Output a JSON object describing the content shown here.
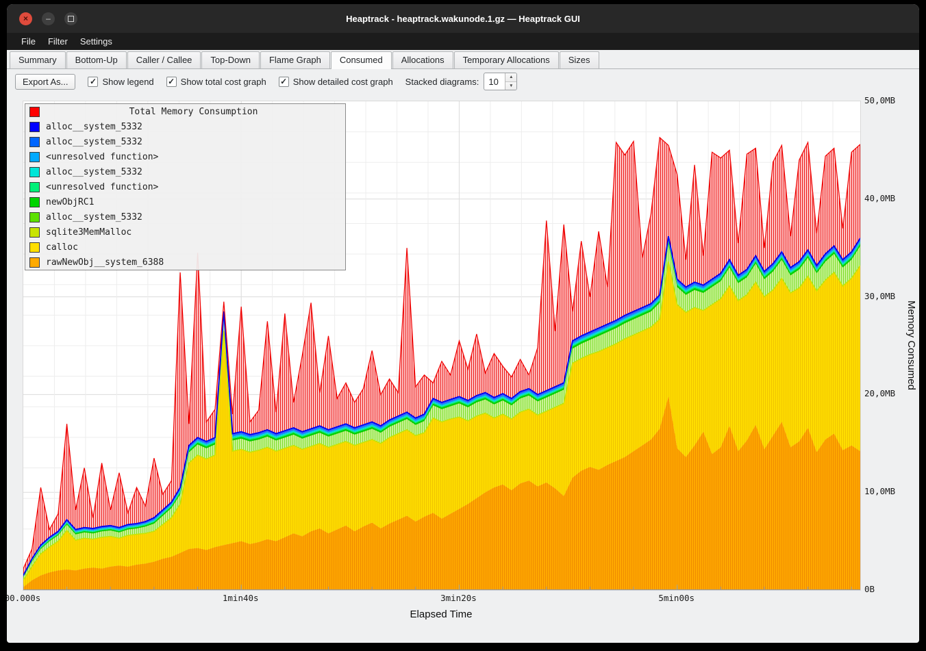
{
  "window": {
    "title": "Heaptrack - heaptrack.wakunode.1.gz — Heaptrack GUI",
    "controls": {
      "close": "×",
      "minimize": "–"
    }
  },
  "menubar": {
    "items": [
      {
        "label": "File"
      },
      {
        "label": "Filter"
      },
      {
        "label": "Settings"
      }
    ]
  },
  "tabs": {
    "active_index": 5,
    "items": [
      {
        "label": "Summary"
      },
      {
        "label": "Bottom-Up"
      },
      {
        "label": "Caller / Callee"
      },
      {
        "label": "Top-Down"
      },
      {
        "label": "Flame Graph"
      },
      {
        "label": "Consumed"
      },
      {
        "label": "Allocations"
      },
      {
        "label": "Temporary Allocations"
      },
      {
        "label": "Sizes"
      }
    ]
  },
  "toolbar": {
    "export_button": "Export As...",
    "check_glyph": "✓",
    "spin_up_glyph": "▲",
    "spin_down_glyph": "▼",
    "checkboxes": [
      {
        "label": "Show legend",
        "checked": true
      },
      {
        "label": "Show total cost graph",
        "checked": true
      },
      {
        "label": "Show detailed cost graph",
        "checked": true
      }
    ],
    "stacked_label": "Stacked diagrams:",
    "stacked_value": "10"
  },
  "chart_data": {
    "type": "area",
    "title": "Total Memory Consumption",
    "xlabel": "Elapsed Time",
    "ylabel": "Memory Consumed",
    "ylim_mb": [
      0,
      50
    ],
    "x": {
      "start_s": 0,
      "step_s": 4,
      "count": 97
    },
    "x_ticks": [
      {
        "t_s": 0,
        "label": "00.000s"
      },
      {
        "t_s": 100,
        "label": "1min40s"
      },
      {
        "t_s": 200,
        "label": "3min20s"
      },
      {
        "t_s": 300,
        "label": "5min00s"
      }
    ],
    "y_ticks": [
      {
        "mb": 0,
        "label": "0B"
      },
      {
        "mb": 10,
        "label": "10,0MB"
      },
      {
        "mb": 20,
        "label": "20,0MB"
      },
      {
        "mb": 30,
        "label": "30,0MB"
      },
      {
        "mb": 40,
        "label": "40,0MB"
      },
      {
        "mb": 50,
        "label": "50,0MB"
      }
    ],
    "legend": {
      "title": {
        "label": "Total Memory Consumption",
        "color": "#ff0000"
      },
      "items": [
        {
          "label": "alloc__system_5332",
          "color": "#0000ff"
        },
        {
          "label": "alloc__system_5332",
          "color": "#0066ff"
        },
        {
          "label": "<unresolved function>",
          "color": "#00aaff"
        },
        {
          "label": "alloc__system_5332",
          "color": "#00e6d8"
        },
        {
          "label": "<unresolved function>",
          "color": "#00f078"
        },
        {
          "label": "newObjRC1",
          "color": "#00d400"
        },
        {
          "label": "alloc__system_5332",
          "color": "#5ce000"
        },
        {
          "label": "sqlite3MemMalloc",
          "color": "#c8e400"
        },
        {
          "label": "calloc",
          "color": "#ffdf00"
        },
        {
          "label": "rawNewObj__system_6388",
          "color": "#ffaa00"
        }
      ]
    },
    "series": {
      "total_mb": [
        2.2,
        4.2,
        10.5,
        6.2,
        7.8,
        17.0,
        8.2,
        12.5,
        7.4,
        13.0,
        8.2,
        12.0,
        7.9,
        10.5,
        8.6,
        13.5,
        9.8,
        11.2,
        32.5,
        17.0,
        34.5,
        17.2,
        18.5,
        29.5,
        18.0,
        29.0,
        17.2,
        18.4,
        27.5,
        18.2,
        28.3,
        19.2,
        24.0,
        29.4,
        20.2,
        26.0,
        19.6,
        21.2,
        19.2,
        20.6,
        24.5,
        20.0,
        21.6,
        20.2,
        35.0,
        20.8,
        22.0,
        21.2,
        23.4,
        22.0,
        25.5,
        22.6,
        26.2,
        22.2,
        24.2,
        22.9,
        21.8,
        23.6,
        22.0,
        24.8,
        37.8,
        26.5,
        37.4,
        28.5,
        35.7,
        30.0,
        36.7,
        31.0,
        45.8,
        44.5,
        45.9,
        34.0,
        38.5,
        46.3,
        45.5,
        42.5,
        33.8,
        43.5,
        34.2,
        44.8,
        44.2,
        45.0,
        35.5,
        44.6,
        45.2,
        35.0,
        43.8,
        45.5,
        36.2,
        44.0,
        45.8,
        36.5,
        44.4,
        45.2,
        37.0,
        44.8,
        45.6
      ],
      "stack_top_mb": [
        1.5,
        3.2,
        4.6,
        5.4,
        6.0,
        7.2,
        6.2,
        6.4,
        6.3,
        6.5,
        6.6,
        6.4,
        6.7,
        6.8,
        7.0,
        7.4,
        8.2,
        9.0,
        10.5,
        14.8,
        15.6,
        15.2,
        15.6,
        28.5,
        16.0,
        16.2,
        15.9,
        16.1,
        16.4,
        16.0,
        16.3,
        16.6,
        16.2,
        16.5,
        16.8,
        16.4,
        16.7,
        17.0,
        16.6,
        16.9,
        17.2,
        16.8,
        17.4,
        17.8,
        18.2,
        17.6,
        18.0,
        19.6,
        19.2,
        19.5,
        19.8,
        19.4,
        19.9,
        20.2,
        19.7,
        20.1,
        19.6,
        20.3,
        20.6,
        20.0,
        20.4,
        20.8,
        21.2,
        25.5,
        26.0,
        26.4,
        26.8,
        27.2,
        27.6,
        28.1,
        28.5,
        28.9,
        29.3,
        30.2,
        36.2,
        31.8,
        31.0,
        31.5,
        31.2,
        31.8,
        32.4,
        33.8,
        32.2,
        32.8,
        34.2,
        32.6,
        33.4,
        34.6,
        33.0,
        33.6,
        34.8,
        33.2,
        34.4,
        35.2,
        33.8,
        34.6,
        36.0
      ],
      "green_top_mb": [
        1.3,
        2.9,
        4.2,
        5.0,
        5.6,
        6.7,
        5.7,
        5.9,
        5.8,
        6.0,
        6.1,
        5.9,
        6.2,
        6.3,
        6.5,
        6.8,
        7.6,
        8.4,
        9.8,
        14.1,
        14.9,
        14.5,
        14.9,
        27.8,
        15.3,
        15.5,
        15.2,
        15.4,
        15.7,
        15.3,
        15.6,
        15.9,
        15.5,
        15.8,
        16.1,
        15.7,
        16.0,
        16.3,
        15.9,
        16.2,
        16.5,
        16.1,
        16.7,
        17.1,
        17.5,
        16.9,
        17.3,
        18.9,
        18.5,
        18.8,
        19.1,
        18.7,
        19.2,
        19.5,
        19.0,
        19.4,
        18.9,
        19.6,
        19.9,
        19.3,
        19.7,
        20.1,
        20.5,
        24.7,
        25.2,
        25.6,
        26.0,
        26.4,
        26.8,
        27.3,
        27.7,
        28.1,
        28.5,
        29.4,
        35.4,
        31.0,
        30.2,
        30.7,
        30.4,
        31.0,
        31.6,
        33.0,
        31.4,
        32.0,
        33.4,
        31.8,
        32.6,
        33.8,
        32.2,
        32.8,
        34.0,
        32.4,
        33.6,
        34.4,
        33.0,
        33.8,
        35.2
      ],
      "yellow_top_mb": [
        1.0,
        2.4,
        3.7,
        4.4,
        5.0,
        6.1,
        5.1,
        5.3,
        5.2,
        5.4,
        5.5,
        5.3,
        5.6,
        5.7,
        5.8,
        6.0,
        6.7,
        7.4,
        8.8,
        13.0,
        13.8,
        13.4,
        13.8,
        26.5,
        14.2,
        14.4,
        14.1,
        14.3,
        14.6,
        14.2,
        14.5,
        14.8,
        14.4,
        14.7,
        15.0,
        14.6,
        14.9,
        15.2,
        14.8,
        15.1,
        15.4,
        15.0,
        15.6,
        16.0,
        16.4,
        15.8,
        16.1,
        17.6,
        17.2,
        17.5,
        17.7,
        17.3,
        17.8,
        18.1,
        17.6,
        18.0,
        17.5,
        18.2,
        18.5,
        17.9,
        18.3,
        18.7,
        19.1,
        23.2,
        23.7,
        24.1,
        24.4,
        24.8,
        25.2,
        25.7,
        26.1,
        26.5,
        26.9,
        27.7,
        33.6,
        29.2,
        28.4,
        28.9,
        28.6,
        29.2,
        29.8,
        31.1,
        29.6,
        30.2,
        31.5,
        30.0,
        30.7,
        31.9,
        30.4,
        30.9,
        32.1,
        30.6,
        31.7,
        32.5,
        31.1,
        31.9,
        33.2
      ],
      "orange_top_mb": [
        0.3,
        1.0,
        1.5,
        1.8,
        2.0,
        2.1,
        2.0,
        2.2,
        2.3,
        2.2,
        2.4,
        2.5,
        2.4,
        2.6,
        2.7,
        2.9,
        3.2,
        3.4,
        3.8,
        4.2,
        4.3,
        4.1,
        4.4,
        4.6,
        4.8,
        5.0,
        4.7,
        4.9,
        5.2,
        5.0,
        5.4,
        5.8,
        5.5,
        6.0,
        6.3,
        5.8,
        6.2,
        6.6,
        6.0,
        6.5,
        6.9,
        6.3,
        6.8,
        7.2,
        7.6,
        7.0,
        7.5,
        7.9,
        7.3,
        7.8,
        8.3,
        8.8,
        9.4,
        10.0,
        10.5,
        10.8,
        10.2,
        10.9,
        11.2,
        10.6,
        11.0,
        10.4,
        9.6,
        11.5,
        12.2,
        12.6,
        12.3,
        12.8,
        13.2,
        13.6,
        14.2,
        14.8,
        15.4,
        16.5,
        19.8,
        14.5,
        13.6,
        14.8,
        16.2,
        13.9,
        14.6,
        16.8,
        14.2,
        15.3,
        16.9,
        14.4,
        15.8,
        17.2,
        14.6,
        15.2,
        16.6,
        14.1,
        15.4,
        16.0,
        14.3,
        14.8,
        14.2
      ]
    },
    "thin_strips": [
      {
        "name": "newObjRC1",
        "color": "#00d400",
        "frac_from": 0.0,
        "frac_to": 0.25
      },
      {
        "name": "<unresolved function>",
        "color": "#00f078",
        "frac_from": 0.25,
        "frac_to": 0.4
      },
      {
        "name": "alloc__system_5332",
        "color": "#00e6d8",
        "frac_from": 0.4,
        "frac_to": 0.55
      },
      {
        "name": "<unresolved function>",
        "color": "#00aaff",
        "frac_from": 0.55,
        "frac_to": 0.7
      },
      {
        "name": "alloc__system_5332",
        "color": "#2d62ff",
        "frac_from": 0.7,
        "frac_to": 1.0
      }
    ],
    "style": {
      "red_area_bg": "#ffc9c9",
      "red_hatch": "#ec1c1c",
      "red_line": "#f00000",
      "orange_bg": "#ffaa00",
      "orange_hatch": "#f08c00",
      "yellow_bg": "#ffdf00",
      "yellow_hatch": "#f0c400",
      "green_bg": "#cdf59b",
      "green_hatch": "#7ddc2e",
      "sqlite_line": "#c8e400",
      "blue_line": "#0000f0",
      "grid_minor": "#ededed",
      "grid_major": "#dcdcdc",
      "axis": "#9a9a9a"
    },
    "grid": {
      "v_step_s": 14.2857,
      "h_step_mb": 3.125,
      "v_major_s": 100,
      "h_major_mb": 10
    }
  }
}
